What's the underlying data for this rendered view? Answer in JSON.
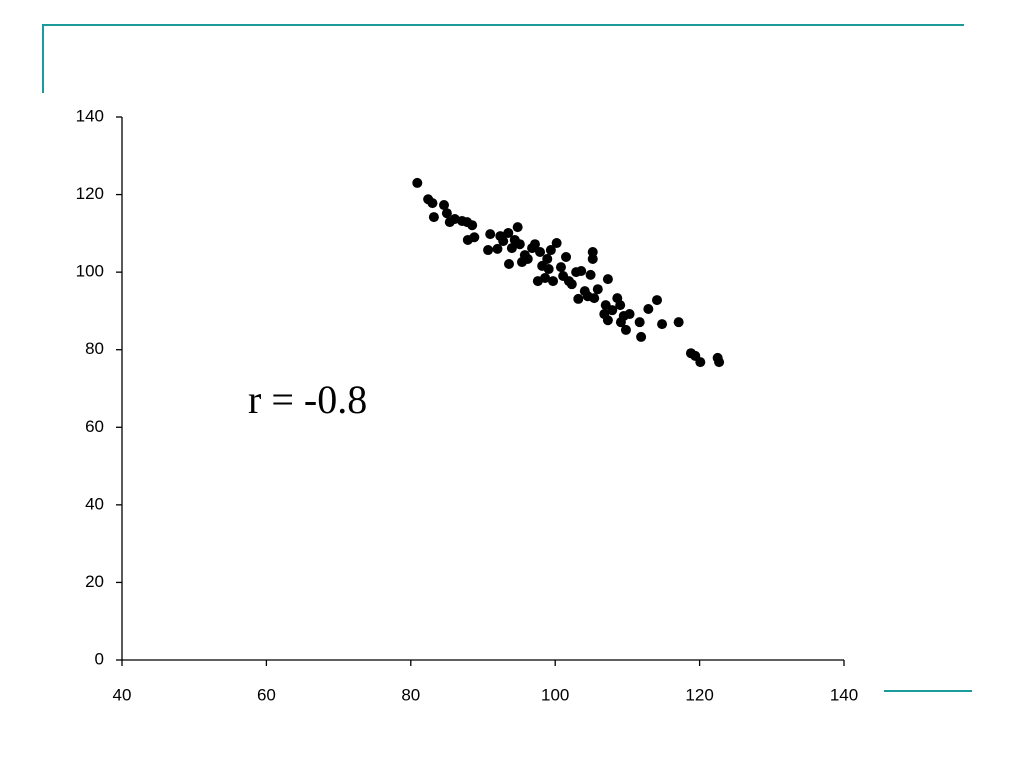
{
  "chart_data": {
    "type": "scatter",
    "annotation": "r = -0.8",
    "color": "#000000",
    "grid": false,
    "xlim": [
      40,
      140
    ],
    "xticks": [
      40,
      60,
      80,
      100,
      120,
      140
    ],
    "ylim": [
      0,
      140
    ],
    "yticks": [
      0,
      20,
      40,
      60,
      80,
      100,
      120,
      140
    ],
    "x": [
      80.9,
      82.4,
      83.0,
      83.2,
      84.6,
      85.0,
      85.4,
      86.1,
      87.1,
      87.8,
      88.5,
      87.9,
      88.8,
      90.7,
      91.0,
      92.0,
      92.4,
      92.8,
      93.5,
      93.6,
      94.0,
      94.4,
      94.8,
      95.1,
      95.4,
      95.8,
      96.2,
      96.8,
      97.2,
      97.6,
      97.9,
      98.2,
      98.6,
      98.9,
      99.1,
      99.4,
      99.7,
      100.2,
      100.8,
      101.1,
      101.5,
      101.9,
      102.3,
      102.9,
      103.2,
      103.6,
      104.1,
      104.5,
      104.9,
      105.2,
      105.2,
      105.4,
      105.9,
      106.8,
      107.0,
      107.3,
      107.3,
      107.9,
      108.6,
      109.0,
      109.1,
      109.5,
      109.8,
      110.3,
      111.7,
      111.9,
      112.9,
      114.1,
      114.8,
      117.1,
      118.8,
      119.4,
      120.1,
      122.5,
      122.7
    ],
    "y": [
      123.0,
      118.8,
      117.8,
      114.2,
      117.3,
      115.2,
      112.9,
      113.7,
      113.2,
      112.9,
      112.1,
      108.3,
      109.0,
      105.7,
      109.8,
      106.0,
      109.3,
      108.0,
      110.1,
      102.1,
      106.2,
      108.3,
      111.6,
      107.2,
      102.6,
      104.4,
      103.4,
      106.2,
      107.2,
      97.7,
      105.2,
      101.6,
      98.5,
      103.4,
      100.8,
      105.7,
      97.7,
      107.5,
      101.3,
      99.0,
      103.9,
      97.7,
      96.9,
      100.0,
      93.1,
      100.3,
      95.1,
      93.8,
      99.3,
      105.2,
      103.4,
      93.3,
      95.6,
      89.2,
      91.5,
      87.6,
      98.2,
      90.2,
      93.3,
      91.5,
      87.1,
      88.7,
      85.1,
      89.2,
      87.1,
      83.3,
      90.5,
      92.8,
      86.6,
      87.1,
      79.1,
      78.4,
      76.8,
      77.9,
      76.8
    ]
  }
}
